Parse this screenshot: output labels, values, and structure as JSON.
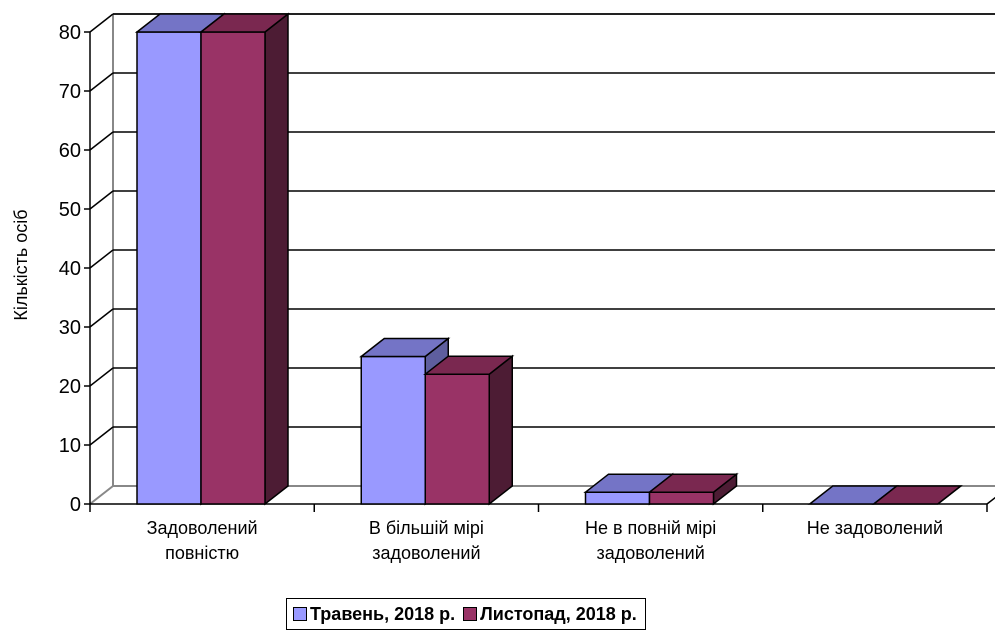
{
  "chart_data": {
    "type": "bar",
    "ylabel": "Кількість осіб",
    "ylim": [
      0,
      80
    ],
    "yticks": [
      0,
      10,
      20,
      30,
      40,
      50,
      60,
      70,
      80
    ],
    "categories": [
      [
        "Задоволений",
        "повністю"
      ],
      [
        "В більшій мірі",
        "задоволений"
      ],
      [
        "Не в повній мірі",
        "задоволений"
      ],
      [
        "Не задоволений"
      ]
    ],
    "series": [
      {
        "name": "Травень, 2018 р.",
        "values": [
          80,
          25,
          2,
          0
        ]
      },
      {
        "name": "Листопад, 2018 р.",
        "values": [
          80,
          22,
          2,
          0
        ]
      }
    ],
    "colors": {
      "series": [
        "#9999ff",
        "#993366"
      ],
      "series_top": [
        "#7474c6",
        "#7a2850"
      ],
      "series_side": [
        "#5e5e9e",
        "#4d1c34"
      ],
      "grid": "#000000",
      "wall_edge": "#888888"
    },
    "grid": true,
    "legend_position": "bottom"
  }
}
